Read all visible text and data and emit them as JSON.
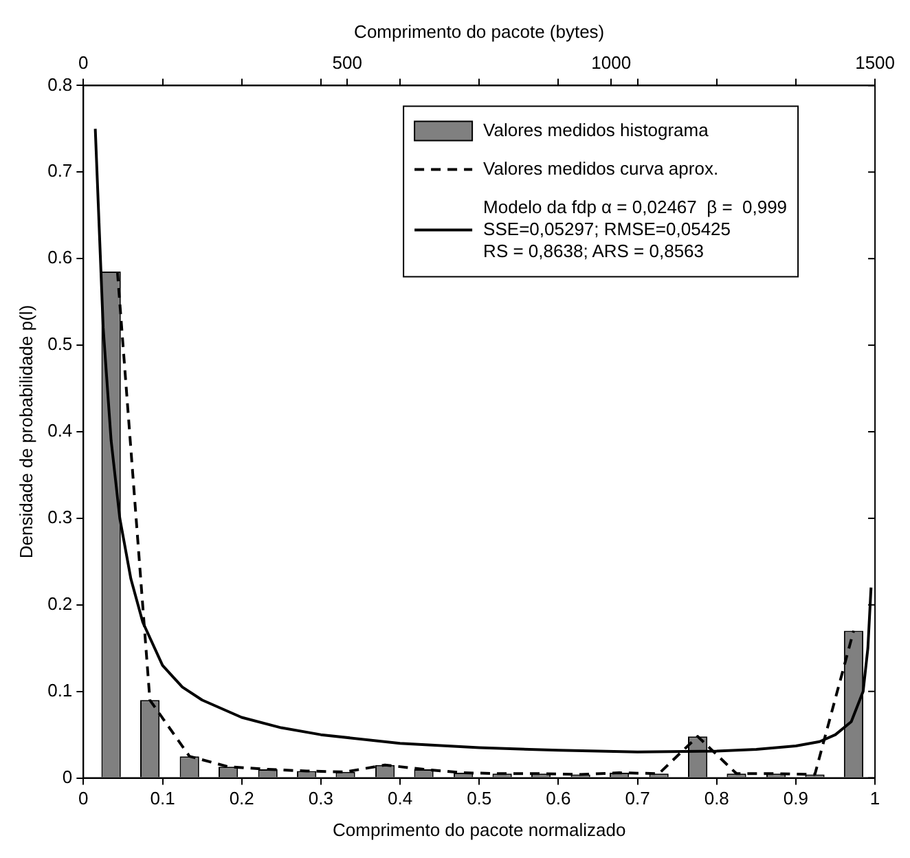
{
  "chart_data": {
    "type": "bar",
    "xlabel": "Comprimento do pacote normalizado",
    "ylabel": "Densidade de probabilidade p(l)",
    "x2label": "Comprimento do pacote (bytes)",
    "series": [
      {
        "name": "Valores medidos histograma",
        "color": "#808080",
        "x": [
          0.035,
          0.084,
          0.134,
          0.183,
          0.233,
          0.282,
          0.331,
          0.381,
          0.43,
          0.48,
          0.529,
          0.578,
          0.628,
          0.677,
          0.727,
          0.776,
          0.825,
          0.875,
          0.924,
          0.973
        ],
        "values": [
          0.585,
          0.09,
          0.025,
          0.013,
          0.01,
          0.008,
          0.007,
          0.015,
          0.01,
          0.006,
          0.005,
          0.005,
          0.004,
          0.006,
          0.005,
          0.048,
          0.005,
          0.005,
          0.004,
          0.17
        ]
      },
      {
        "name": "Valores medidos curva aprox.",
        "type": "line",
        "color": "#000000",
        "line_style": "dashed",
        "x": [
          0.043,
          0.084,
          0.134,
          0.183,
          0.233,
          0.282,
          0.331,
          0.381,
          0.43,
          0.48,
          0.529,
          0.578,
          0.628,
          0.677,
          0.727,
          0.776,
          0.825,
          0.875,
          0.924,
          0.973
        ],
        "values": [
          0.585,
          0.09,
          0.025,
          0.013,
          0.01,
          0.008,
          0.007,
          0.015,
          0.01,
          0.006,
          0.005,
          0.005,
          0.004,
          0.006,
          0.005,
          0.048,
          0.005,
          0.005,
          0.004,
          0.17
        ]
      },
      {
        "name": "Modelo da fdp α = 0,02467  β =  0,999\nSSE=0,05297; RMSE=0,05425\nRS = 0,8638; ARS = 0,8563",
        "type": "line",
        "color": "#000000",
        "line_style": "solid",
        "x": [
          0.015,
          0.025,
          0.035,
          0.046,
          0.06,
          0.075,
          0.1,
          0.125,
          0.15,
          0.2,
          0.25,
          0.3,
          0.4,
          0.5,
          0.6,
          0.7,
          0.8,
          0.85,
          0.9,
          0.93,
          0.95,
          0.97,
          0.985,
          0.991,
          0.995
        ],
        "values": [
          0.75,
          0.52,
          0.39,
          0.3,
          0.23,
          0.18,
          0.13,
          0.105,
          0.09,
          0.07,
          0.058,
          0.05,
          0.04,
          0.035,
          0.032,
          0.03,
          0.031,
          0.033,
          0.037,
          0.042,
          0.05,
          0.065,
          0.1,
          0.15,
          0.22
        ]
      }
    ],
    "xlim": [
      0,
      1
    ],
    "xticks": [
      0,
      0.1,
      0.2,
      0.3,
      0.4,
      0.5,
      0.6,
      0.7,
      0.8,
      0.9,
      1
    ],
    "x2lim": [
      0,
      1500
    ],
    "x2ticks": [
      0,
      {
        "value": 150,
        "label": null
      },
      {
        "value": 300,
        "label": null
      },
      {
        "value": 450,
        "label": null
      },
      500,
      {
        "value": 600,
        "label": null
      },
      {
        "value": 750,
        "label": null
      },
      {
        "value": 900,
        "label": null
      },
      1000,
      {
        "value": 1050,
        "label": null
      },
      {
        "value": 1200,
        "label": null
      },
      {
        "value": 1350,
        "label": null
      },
      1500
    ],
    "ylim": [
      0,
      0.8
    ],
    "yticks": [
      0,
      0.1,
      0.2,
      0.3,
      0.4,
      0.5,
      0.6,
      0.7,
      0.8
    ],
    "grid": false,
    "legend": "top right"
  }
}
